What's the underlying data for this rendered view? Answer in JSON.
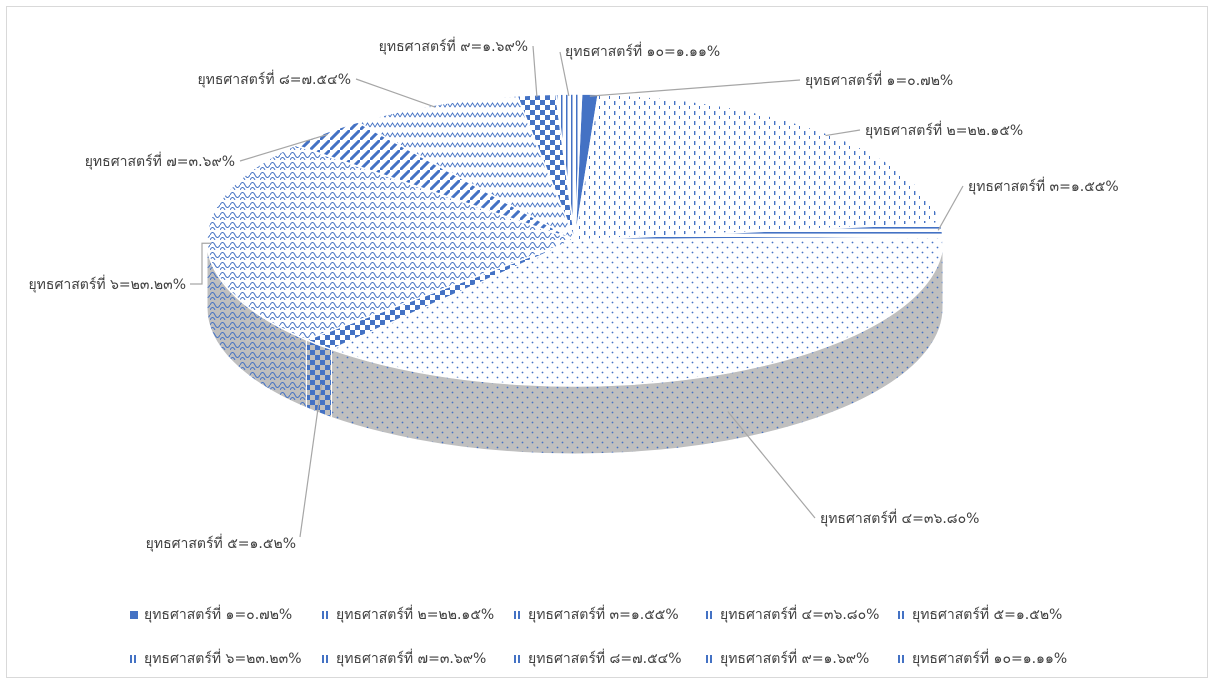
{
  "chart_data": {
    "type": "pie",
    "title": "",
    "categories": [
      "ยุทธศาสตร์ที่ ๑=๐.๗๒%",
      "ยุทธศาสตร์ที่ ๒=๒๒.๑๕%",
      "ยุทธศาสตร์ที่ ๓=๑.๕๕%",
      "ยุทธศาสตร์ที่ ๔=๓๖.๘๐%",
      "ยุทธศาสตร์ที่ ๕=๑.๕๒%",
      "ยุทธศาสตร์ที่ ๖=๒๓.๒๓%",
      "ยุทธศาสตร์ที่ ๗=๓.๖๙%",
      "ยุทธศาสตร์ที่ ๘=๗.๕๔%",
      "ยุทธศาสตร์ที่ ๙=๑.๖๙%",
      "ยุทธศาสตร์ที่ ๑๐=๑.๑๑%"
    ],
    "values": [
      0.72,
      22.15,
      1.55,
      36.8,
      1.52,
      23.23,
      3.69,
      7.54,
      1.69,
      1.11
    ],
    "unit": "%",
    "legend_position": "bottom",
    "style": "3d-pie-patterned",
    "colors": {
      "accent": "#4472c4",
      "shade": "#a6a6a6",
      "leader": "#a6a6a6",
      "text": "#404040"
    }
  }
}
